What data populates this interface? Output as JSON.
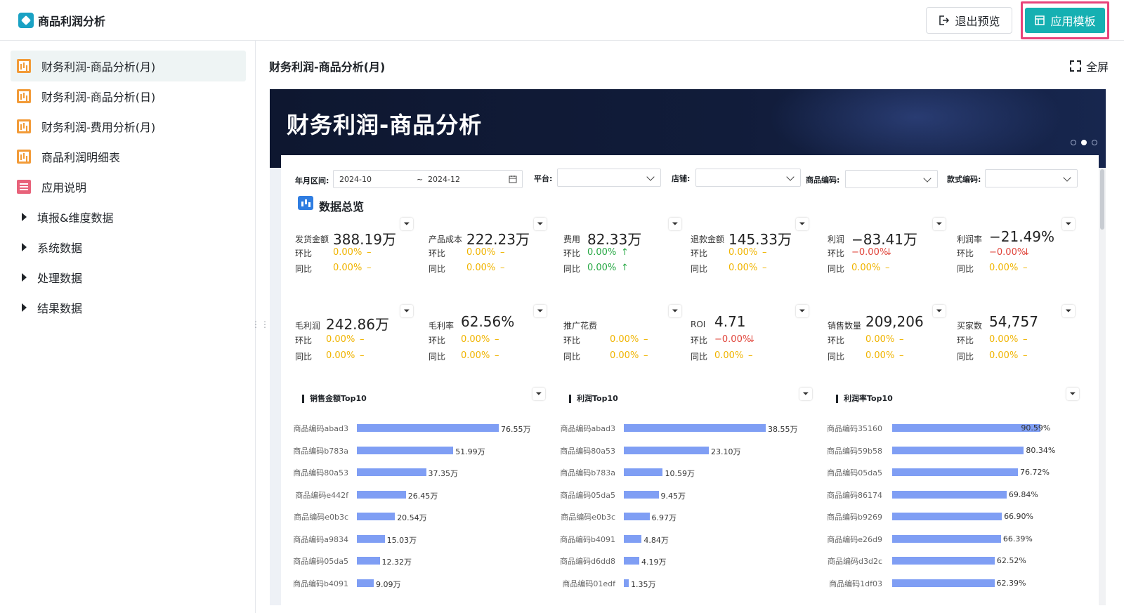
{
  "header": {
    "app_title": "商品利润分析",
    "exit_preview_label": "退出预览",
    "apply_template_label": "应用模板"
  },
  "sidebar": {
    "items": [
      {
        "label": "财务利润-商品分析(月)",
        "icon": "chart-icon",
        "active": true
      },
      {
        "label": "财务利润-商品分析(日)",
        "icon": "chart-icon"
      },
      {
        "label": "财务利润-费用分析(月)",
        "icon": "chart-icon"
      },
      {
        "label": "商品利润明细表",
        "icon": "chart-icon"
      },
      {
        "label": "应用说明",
        "icon": "doc-icon"
      },
      {
        "label": "填报&维度数据",
        "icon": "caret-right-icon"
      },
      {
        "label": "系统数据",
        "icon": "caret-right-icon"
      },
      {
        "label": "处理数据",
        "icon": "caret-right-icon"
      },
      {
        "label": "结果数据",
        "icon": "caret-right-icon"
      }
    ]
  },
  "main": {
    "title": "财务利润-商品分析(月)",
    "fullscreen_label": "全屏",
    "banner_title": "财务利润-商品分析",
    "filters": {
      "year_month_label": "年月区间:",
      "date_start": "2024-10",
      "date_sep": "~",
      "date_end": "2024-12",
      "platform_label": "平台:",
      "shop_label": "店铺:",
      "product_code_label": "商品编码:",
      "style_code_label": "款式编码:"
    },
    "overview_title": "数据总览",
    "kpis_row1": [
      {
        "label": "发货金额",
        "value": "388.19万",
        "mom_label": "环比",
        "mom": "0.00%",
        "mom_trend": "–",
        "yoy_label": "同比",
        "yoy": "0.00%",
        "yoy_trend": "–"
      },
      {
        "label": "产品成本",
        "value": "222.23万",
        "mom_label": "环比",
        "mom": "0.00%",
        "mom_trend": "–",
        "yoy_label": "同比",
        "yoy": "0.00%",
        "yoy_trend": "–"
      },
      {
        "label": "费用",
        "value": "82.33万",
        "mom_label": "环比",
        "mom": "0.00%",
        "mom_trend": "↑",
        "yoy_label": "同比",
        "yoy": "0.00%",
        "yoy_trend": "↑"
      },
      {
        "label": "退款金额",
        "value": "145.33万",
        "mom_label": "环比",
        "mom": "0.00%",
        "mom_trend": "–",
        "yoy_label": "同比",
        "yoy": "0.00%",
        "yoy_trend": "–"
      },
      {
        "label": "利润",
        "value": "−83.41万",
        "mom_label": "环比",
        "mom": "−0.00%",
        "mom_trend": "↓",
        "yoy_label": "同比",
        "yoy": "0.00%",
        "yoy_trend": "–"
      },
      {
        "label": "利润率",
        "value": "−21.49%",
        "mom_label": "环比",
        "mom": "−0.00%",
        "mom_trend": "↓",
        "yoy_label": "同比",
        "yoy": "0.00%",
        "yoy_trend": "–"
      }
    ],
    "kpis_row2": [
      {
        "label": "毛利润",
        "value": "242.86万",
        "mom_label": "环比",
        "mom": "0.00%",
        "mom_trend": "–",
        "yoy_label": "同比",
        "yoy": "0.00%",
        "yoy_trend": "–"
      },
      {
        "label": "毛利率",
        "value": "62.56%",
        "mom_label": "环比",
        "mom": "0.00%",
        "mom_trend": "–",
        "yoy_label": "同比",
        "yoy": "0.00%",
        "yoy_trend": "–"
      },
      {
        "label": "推广花费",
        "value": "",
        "mom_label": "环比",
        "mom": "0.00%",
        "mom_trend": "–",
        "yoy_label": "同比",
        "yoy": "0.00%",
        "yoy_trend": "–"
      },
      {
        "label": "ROI",
        "value": "4.71",
        "mom_label": "环比",
        "mom": "−0.00%",
        "mom_trend": "↓",
        "yoy_label": "同比",
        "yoy": "0.00%",
        "yoy_trend": "–"
      },
      {
        "label": "销售数量",
        "value": "209,206",
        "mom_label": "环比",
        "mom": "0.00%",
        "mom_trend": "–",
        "yoy_label": "同比",
        "yoy": "0.00%",
        "yoy_trend": "–"
      },
      {
        "label": "买家数",
        "value": "54,757",
        "mom_label": "环比",
        "mom": "0.00%",
        "mom_trend": "–",
        "yoy_label": "同比",
        "yoy": "0.00%",
        "yoy_trend": "–"
      }
    ]
  },
  "colors": {
    "accent": "#15b0b2",
    "highlight_border": "#e8437a",
    "bar": "#7f9ef4",
    "neutral_pct": "#f0b400",
    "up_pct": "#27a844",
    "down_pct": "#e0443a"
  },
  "chart_data": [
    {
      "type": "bar",
      "title": "销售金额Top10",
      "categories": [
        "商品编码abad3",
        "商品编码b783a",
        "商品编码80a53",
        "商品编码e442f",
        "商品编码e0b3c",
        "商品编码a9834",
        "商品编码05da5",
        "商品编码b4091"
      ],
      "values": [
        76.55,
        51.99,
        37.35,
        26.45,
        20.54,
        15.03,
        12.32,
        9.09
      ],
      "value_labels": [
        "76.55万",
        "51.99万",
        "37.35万",
        "26.45万",
        "20.54万",
        "15.03万",
        "12.32万",
        "9.09万"
      ],
      "orientation": "horizontal"
    },
    {
      "type": "bar",
      "title": "利润Top10",
      "categories": [
        "商品编码abad3",
        "商品编码80a53",
        "商品编码b783a",
        "商品编码05da5",
        "商品编码e0b3c",
        "商品编码b4091",
        "商品编码d6dd8",
        "商品编码01edf"
      ],
      "values": [
        38.55,
        23.1,
        10.59,
        9.45,
        6.97,
        4.84,
        4.19,
        1.35
      ],
      "value_labels": [
        "38.55万",
        "23.10万",
        "10.59万",
        "9.45万",
        "6.97万",
        "4.84万",
        "4.19万",
        "1.35万"
      ],
      "orientation": "horizontal"
    },
    {
      "type": "bar",
      "title": "利润率Top10",
      "categories": [
        "商品编码35160",
        "商品编码59b58",
        "商品编码05da5",
        "商品编码86174",
        "商品编码b9269",
        "商品编码e26d9",
        "商品编码d3d2c",
        "商品编码1df03"
      ],
      "values": [
        90.59,
        80.34,
        76.72,
        69.84,
        66.9,
        66.39,
        62.52,
        62.39
      ],
      "value_labels": [
        "90.59%",
        "80.34%",
        "76.72%",
        "69.84%",
        "66.90%",
        "66.39%",
        "62.52%",
        "62.39%"
      ],
      "orientation": "horizontal"
    }
  ]
}
